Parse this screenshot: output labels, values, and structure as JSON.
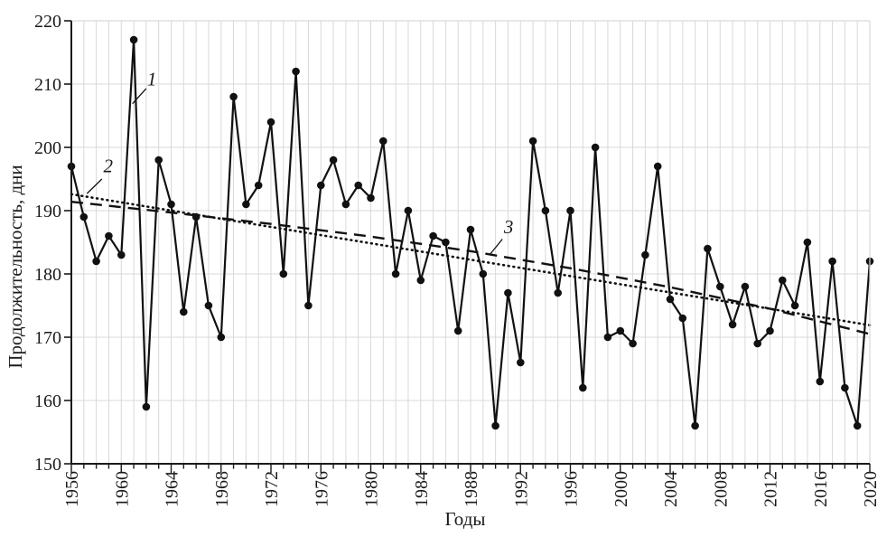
{
  "chart_data": {
    "type": "line",
    "title": "",
    "xlabel": "Годы",
    "ylabel": "Продолжительность, дни",
    "xlim": [
      1956,
      2020
    ],
    "ylim": [
      150,
      220
    ],
    "grid": "on",
    "legend_position": "none",
    "y_ticks": [
      150,
      160,
      170,
      180,
      190,
      200,
      210,
      220
    ],
    "x_tick_labels": [
      1956,
      1960,
      1964,
      1968,
      1972,
      1976,
      1980,
      1984,
      1988,
      1992,
      1996,
      2000,
      2004,
      2008,
      2012,
      2016,
      2020
    ],
    "series": [
      {
        "name": "1",
        "style": "solid-with-markers",
        "x_start": 1956,
        "x_step": 1,
        "values": [
          197,
          189,
          182,
          186,
          183,
          217,
          159,
          198,
          191,
          174,
          189,
          175,
          170,
          208,
          191,
          194,
          204,
          180,
          212,
          175,
          194,
          198,
          191,
          194,
          192,
          201,
          180,
          190,
          179,
          186,
          185,
          171,
          187,
          180,
          156,
          177,
          166,
          201,
          190,
          177,
          190,
          162,
          200,
          170,
          171,
          169,
          183,
          197,
          176,
          173,
          156,
          184,
          178,
          172,
          178,
          169,
          171,
          179,
          175,
          185,
          163,
          182,
          162,
          156,
          182
        ]
      },
      {
        "name": "2",
        "style": "dotted-trend",
        "points": [
          [
            1956,
            192.6
          ],
          [
            2020,
            171.9
          ]
        ]
      },
      {
        "name": "3",
        "style": "dashed-trend",
        "points": [
          [
            1956,
            191.4
          ],
          [
            1964,
            189.7
          ],
          [
            1972,
            187.9
          ],
          [
            1980,
            185.9
          ],
          [
            1988,
            183.6
          ],
          [
            1996,
            180.9
          ],
          [
            2004,
            177.9
          ],
          [
            2012,
            174.5
          ],
          [
            2020,
            170.5
          ]
        ]
      }
    ],
    "annotations": [
      {
        "label": "1",
        "at": [
          1962.45,
          210.8
        ],
        "leader": [
          [
            1962.0,
            209.3
          ],
          [
            1960.9,
            206.9
          ]
        ]
      },
      {
        "label": "2",
        "at": [
          1958.95,
          197.1
        ],
        "leader": [
          [
            1958.45,
            195.0
          ],
          [
            1957.25,
            192.7
          ]
        ]
      },
      {
        "label": "3",
        "at": [
          1991.05,
          187.4
        ],
        "leader": [
          [
            1990.55,
            185.5
          ],
          [
            1989.6,
            183.2
          ]
        ]
      }
    ],
    "colors": {
      "series": "#111111",
      "axis": "#1a1a1a",
      "grid": "#d9d9d9",
      "background": "#ffffff"
    }
  }
}
